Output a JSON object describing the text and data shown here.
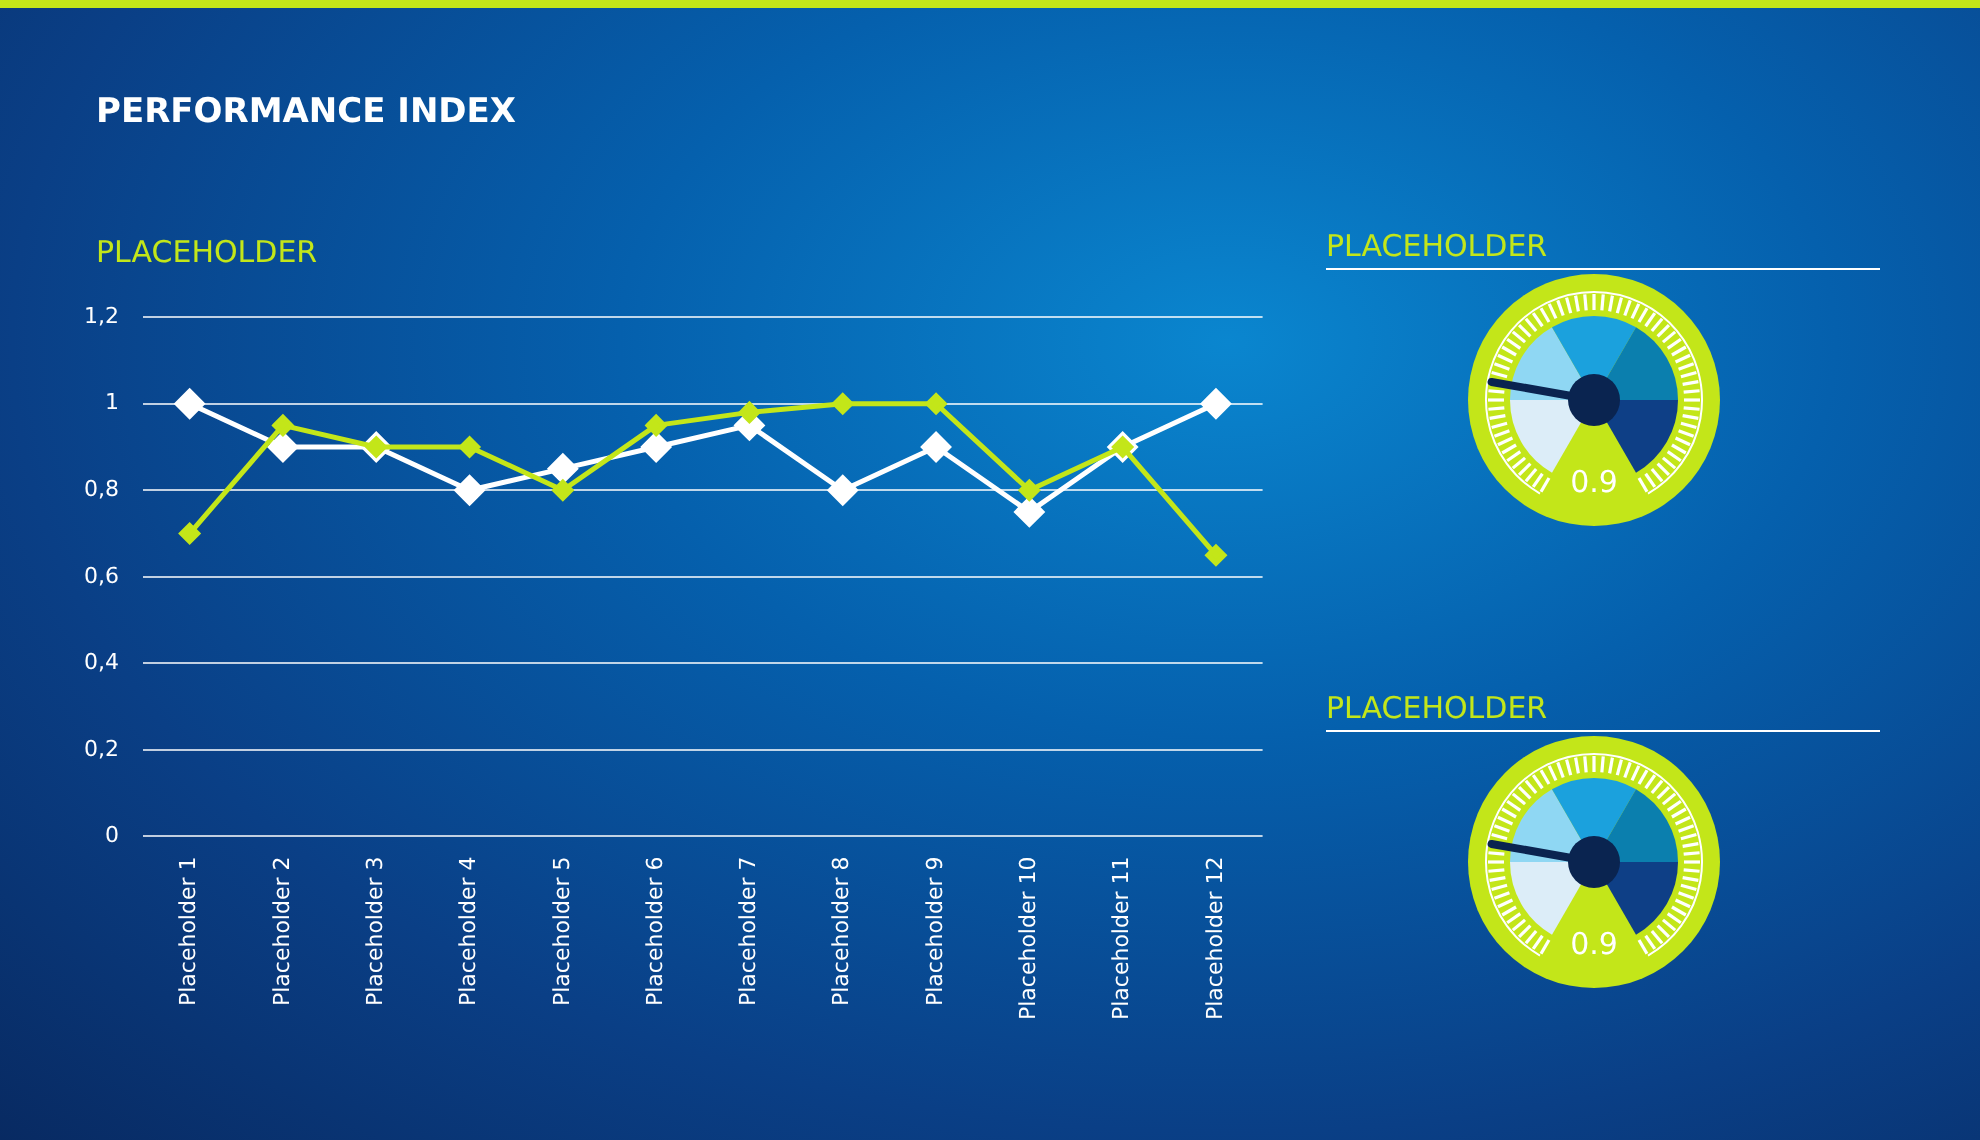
{
  "chart_data": [
    {
      "type": "line",
      "title": "PERFORMANCE INDEX",
      "subtitle": "PLACEHOLDER",
      "categories": [
        "Placeholder 1",
        "Placeholder 2",
        "Placeholder 3",
        "Placeholder 4",
        "Placeholder 5",
        "Placeholder 6",
        "Placeholder 7",
        "Placeholder 8",
        "Placeholder 9",
        "Placeholder 10",
        "Placeholder 11",
        "Placeholder 12"
      ],
      "series": [
        {
          "color": "#c3e619",
          "values": [
            0.7,
            0.95,
            0.9,
            0.9,
            0.8,
            0.95,
            0.98,
            1,
            1,
            0.8,
            0.9,
            0.65
          ]
        },
        {
          "color": "#ffffff",
          "values": [
            1,
            0.9,
            0.9,
            0.8,
            0.85,
            0.9,
            0.95,
            0.8,
            0.9,
            0.75,
            0.9,
            1
          ]
        }
      ],
      "ylim": [
        0,
        1.2
      ],
      "yticks": [
        0,
        {
          "value": 0.2,
          "label": "0,2"
        },
        {
          "value": 0.4,
          "label": "0,4"
        },
        {
          "value": 0.6,
          "label": "0,6"
        },
        {
          "value": 0.8,
          "label": "0,8"
        },
        1,
        {
          "value": 1.2,
          "label": "1,2"
        }
      ],
      "grid": "y",
      "legend": false,
      "marker": "diamond",
      "line_style": "solid"
    },
    {
      "type": "other",
      "title": "PLACEHOLDER",
      "annotations": [
        "0.9"
      ]
    },
    {
      "type": "other",
      "title": "PLACEHOLDER",
      "annotations": [
        "0.9"
      ]
    }
  ]
}
